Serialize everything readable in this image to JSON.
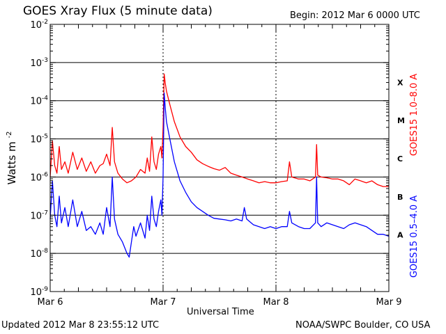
{
  "header": {
    "title": "GOES Xray Flux (5 minute data)",
    "begin": "Begin:  2012 Mar 6 0000 UTC"
  },
  "footer": {
    "updated": "Updated 2012 Mar  8 23:55:12 UTC",
    "credit": "NOAA/SWPC Boulder, CO USA"
  },
  "chart_data": {
    "type": "line",
    "title": "GOES Xray Flux (5 minute data)",
    "xlabel": "Universal Time",
    "ylabel": "Watts m",
    "ylabel_sup": "-2",
    "x_unit": "days since 2012 Mar 6 0000 UTC",
    "xlim": [
      0,
      3
    ],
    "x_ticks": [
      {
        "x": 0,
        "label": "Mar 6"
      },
      {
        "x": 1,
        "label": "Mar 7"
      },
      {
        "x": 2,
        "label": "Mar 8"
      },
      {
        "x": 3,
        "label": "Mar 9"
      }
    ],
    "y_scale": "log",
    "ylim_exp": [
      -9,
      -2
    ],
    "y_ticks_exp": [
      -2,
      -3,
      -4,
      -5,
      -6,
      -7,
      -8,
      -9
    ],
    "y_tick_base": "10",
    "grid": "horizontal lines at decades 1e-8 to 1e-3",
    "flare_classes": [
      {
        "label": "X",
        "exp": -4
      },
      {
        "label": "M",
        "exp": -5
      },
      {
        "label": "C",
        "exp": -6
      },
      {
        "label": "B",
        "exp": -7
      },
      {
        "label": "A",
        "exp": -8
      }
    ],
    "series": [
      {
        "name": "GOES15 1.0–8.0 A",
        "color": "#ff0000",
        "points": [
          [
            0.0,
            -6.0
          ],
          [
            0.02,
            -5.05
          ],
          [
            0.04,
            -5.7
          ],
          [
            0.06,
            -5.9
          ],
          [
            0.08,
            -5.2
          ],
          [
            0.1,
            -5.8
          ],
          [
            0.13,
            -5.6
          ],
          [
            0.16,
            -5.9
          ],
          [
            0.2,
            -5.35
          ],
          [
            0.24,
            -5.8
          ],
          [
            0.28,
            -5.5
          ],
          [
            0.32,
            -5.85
          ],
          [
            0.36,
            -5.6
          ],
          [
            0.4,
            -5.9
          ],
          [
            0.44,
            -5.7
          ],
          [
            0.47,
            -5.65
          ],
          [
            0.5,
            -5.4
          ],
          [
            0.53,
            -5.7
          ],
          [
            0.55,
            -4.7
          ],
          [
            0.57,
            -5.6
          ],
          [
            0.6,
            -5.9
          ],
          [
            0.64,
            -6.05
          ],
          [
            0.68,
            -6.15
          ],
          [
            0.72,
            -6.1
          ],
          [
            0.76,
            -6.0
          ],
          [
            0.8,
            -5.8
          ],
          [
            0.84,
            -5.9
          ],
          [
            0.86,
            -5.5
          ],
          [
            0.88,
            -5.85
          ],
          [
            0.9,
            -4.95
          ],
          [
            0.92,
            -5.6
          ],
          [
            0.94,
            -5.8
          ],
          [
            0.96,
            -5.4
          ],
          [
            0.98,
            -5.2
          ],
          [
            0.99,
            -5.5
          ],
          [
            1.0,
            -4.7
          ],
          [
            1.01,
            -3.3
          ],
          [
            1.02,
            -3.55
          ],
          [
            1.03,
            -3.75
          ],
          [
            1.06,
            -4.1
          ],
          [
            1.1,
            -4.55
          ],
          [
            1.15,
            -4.95
          ],
          [
            1.2,
            -5.2
          ],
          [
            1.25,
            -5.35
          ],
          [
            1.3,
            -5.55
          ],
          [
            1.35,
            -5.65
          ],
          [
            1.4,
            -5.72
          ],
          [
            1.45,
            -5.78
          ],
          [
            1.5,
            -5.82
          ],
          [
            1.55,
            -5.75
          ],
          [
            1.6,
            -5.9
          ],
          [
            1.65,
            -5.95
          ],
          [
            1.7,
            -6.0
          ],
          [
            1.75,
            -6.05
          ],
          [
            1.8,
            -6.1
          ],
          [
            1.85,
            -6.15
          ],
          [
            1.9,
            -6.12
          ],
          [
            1.95,
            -6.15
          ],
          [
            2.0,
            -6.15
          ],
          [
            2.05,
            -6.12
          ],
          [
            2.1,
            -6.1
          ],
          [
            2.12,
            -5.6
          ],
          [
            2.14,
            -6.0
          ],
          [
            2.2,
            -6.05
          ],
          [
            2.25,
            -6.05
          ],
          [
            2.3,
            -6.1
          ],
          [
            2.35,
            -6.0
          ],
          [
            2.36,
            -5.15
          ],
          [
            2.37,
            -5.95
          ],
          [
            2.4,
            -6.0
          ],
          [
            2.45,
            -6.02
          ],
          [
            2.5,
            -6.05
          ],
          [
            2.55,
            -6.05
          ],
          [
            2.6,
            -6.1
          ],
          [
            2.65,
            -6.2
          ],
          [
            2.7,
            -6.05
          ],
          [
            2.75,
            -6.1
          ],
          [
            2.8,
            -6.15
          ],
          [
            2.85,
            -6.1
          ],
          [
            2.9,
            -6.2
          ],
          [
            2.95,
            -6.25
          ],
          [
            3.0,
            -6.25
          ]
        ]
      },
      {
        "name": "GOES15 0.5–4.0 A",
        "color": "#0000ff",
        "points": [
          [
            0.0,
            -7.1
          ],
          [
            0.02,
            -6.1
          ],
          [
            0.04,
            -7.0
          ],
          [
            0.06,
            -7.3
          ],
          [
            0.08,
            -6.5
          ],
          [
            0.1,
            -7.2
          ],
          [
            0.13,
            -6.8
          ],
          [
            0.16,
            -7.3
          ],
          [
            0.2,
            -6.6
          ],
          [
            0.24,
            -7.3
          ],
          [
            0.28,
            -6.9
          ],
          [
            0.32,
            -7.4
          ],
          [
            0.36,
            -7.3
          ],
          [
            0.4,
            -7.5
          ],
          [
            0.44,
            -7.2
          ],
          [
            0.47,
            -7.5
          ],
          [
            0.5,
            -6.8
          ],
          [
            0.53,
            -7.3
          ],
          [
            0.55,
            -6.0
          ],
          [
            0.57,
            -7.1
          ],
          [
            0.6,
            -7.5
          ],
          [
            0.64,
            -7.7
          ],
          [
            0.68,
            -8.0
          ],
          [
            0.7,
            -8.1
          ],
          [
            0.72,
            -7.7
          ],
          [
            0.74,
            -7.3
          ],
          [
            0.76,
            -7.55
          ],
          [
            0.8,
            -7.2
          ],
          [
            0.84,
            -7.6
          ],
          [
            0.86,
            -7.0
          ],
          [
            0.88,
            -7.4
          ],
          [
            0.9,
            -6.5
          ],
          [
            0.92,
            -7.1
          ],
          [
            0.94,
            -7.3
          ],
          [
            0.96,
            -6.9
          ],
          [
            0.98,
            -6.6
          ],
          [
            0.99,
            -7.0
          ],
          [
            1.0,
            -6.0
          ],
          [
            1.01,
            -3.8
          ],
          [
            1.02,
            -4.2
          ],
          [
            1.03,
            -4.55
          ],
          [
            1.06,
            -5.0
          ],
          [
            1.1,
            -5.6
          ],
          [
            1.15,
            -6.1
          ],
          [
            1.2,
            -6.4
          ],
          [
            1.25,
            -6.65
          ],
          [
            1.3,
            -6.8
          ],
          [
            1.35,
            -6.9
          ],
          [
            1.4,
            -7.0
          ],
          [
            1.45,
            -7.08
          ],
          [
            1.5,
            -7.1
          ],
          [
            1.55,
            -7.12
          ],
          [
            1.6,
            -7.15
          ],
          [
            1.65,
            -7.1
          ],
          [
            1.7,
            -7.15
          ],
          [
            1.72,
            -6.8
          ],
          [
            1.74,
            -7.1
          ],
          [
            1.8,
            -7.25
          ],
          [
            1.85,
            -7.3
          ],
          [
            1.9,
            -7.35
          ],
          [
            1.95,
            -7.3
          ],
          [
            2.0,
            -7.35
          ],
          [
            2.05,
            -7.3
          ],
          [
            2.1,
            -7.3
          ],
          [
            2.12,
            -6.9
          ],
          [
            2.14,
            -7.2
          ],
          [
            2.2,
            -7.3
          ],
          [
            2.25,
            -7.35
          ],
          [
            2.3,
            -7.35
          ],
          [
            2.35,
            -7.2
          ],
          [
            2.36,
            -6.0
          ],
          [
            2.37,
            -7.2
          ],
          [
            2.4,
            -7.3
          ],
          [
            2.45,
            -7.2
          ],
          [
            2.5,
            -7.25
          ],
          [
            2.55,
            -7.3
          ],
          [
            2.6,
            -7.35
          ],
          [
            2.65,
            -7.25
          ],
          [
            2.7,
            -7.2
          ],
          [
            2.75,
            -7.25
          ],
          [
            2.8,
            -7.3
          ],
          [
            2.85,
            -7.4
          ],
          [
            2.9,
            -7.5
          ],
          [
            2.95,
            -7.5
          ],
          [
            3.0,
            -7.55
          ]
        ]
      }
    ]
  }
}
